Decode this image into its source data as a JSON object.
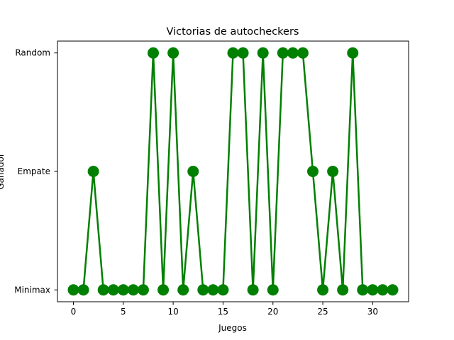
{
  "chart_data": {
    "type": "line",
    "title": "Victorias de autocheckers",
    "xlabel": "Juegos",
    "ylabel": "Ganador",
    "categories_y": [
      "Minimax",
      "Empate",
      "Random"
    ],
    "x_ticks": [
      0,
      5,
      10,
      15,
      20,
      25,
      30
    ],
    "xlim": [
      -1.6,
      33.6
    ],
    "ylim": [
      -0.1,
      2.1
    ],
    "grid": false,
    "series": [
      {
        "color": "#008000",
        "marker": "circle",
        "x": [
          0,
          1,
          2,
          3,
          4,
          5,
          6,
          7,
          8,
          9,
          10,
          11,
          12,
          13,
          14,
          15,
          16,
          17,
          18,
          19,
          20,
          21,
          22,
          23,
          24,
          25,
          26,
          27,
          28,
          29,
          30,
          31,
          32
        ],
        "y": [
          "Minimax",
          "Minimax",
          "Empate",
          "Minimax",
          "Minimax",
          "Minimax",
          "Minimax",
          "Minimax",
          "Random",
          "Minimax",
          "Random",
          "Minimax",
          "Empate",
          "Minimax",
          "Minimax",
          "Minimax",
          "Random",
          "Random",
          "Minimax",
          "Random",
          "Minimax",
          "Random",
          "Random",
          "Random",
          "Empate",
          "Minimax",
          "Empate",
          "Minimax",
          "Random",
          "Minimax",
          "Minimax",
          "Minimax",
          "Minimax"
        ]
      }
    ]
  }
}
